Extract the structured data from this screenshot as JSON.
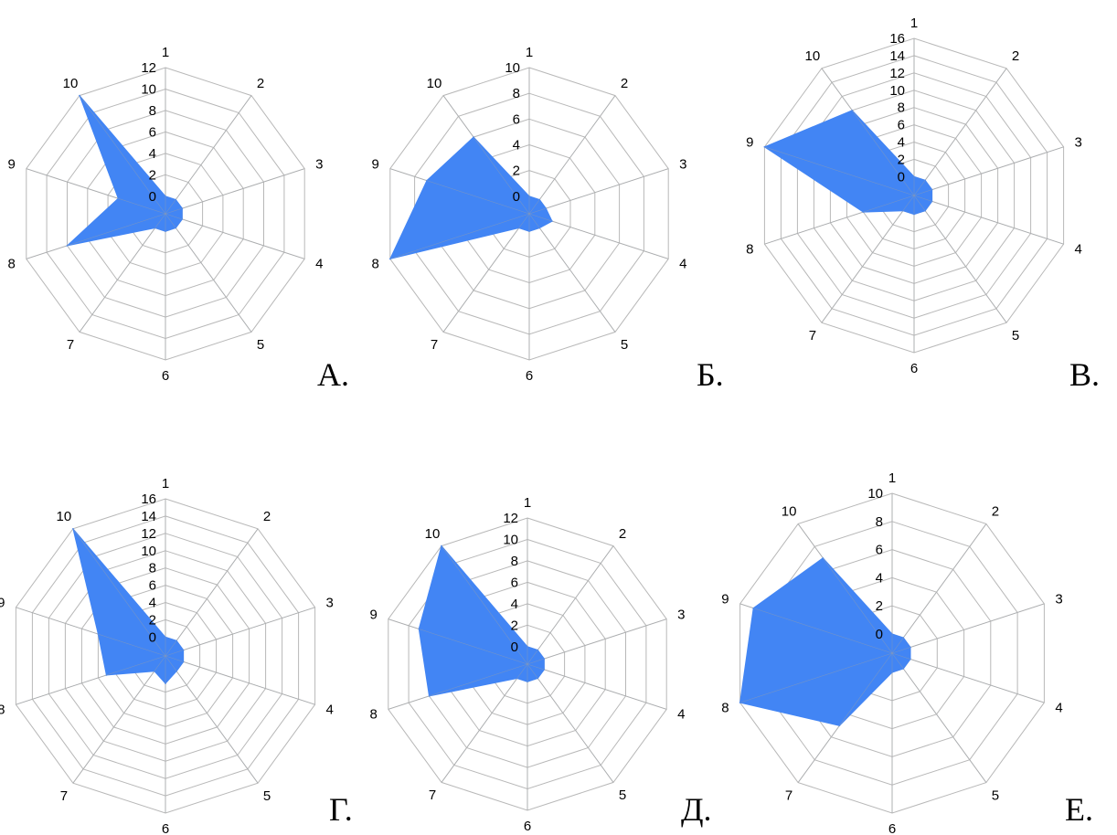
{
  "page": {
    "background": "#ffffff"
  },
  "style": {
    "grid_color": "#b8b8b8",
    "fill_color": "#4285f4",
    "text_color": "#000000"
  },
  "chart_data": [
    {
      "panel_label": "А.",
      "type": "radar",
      "categories": [
        "1",
        "2",
        "3",
        "4",
        "5",
        "6",
        "7",
        "8",
        "9",
        "10"
      ],
      "ticks": [
        "0",
        "2",
        "4",
        "6",
        "8",
        "10",
        "12"
      ],
      "rmax": 12,
      "grid": true,
      "series": [
        {
          "values": [
            0,
            0,
            0,
            0,
            0,
            0,
            0,
            8,
            3,
            12
          ]
        }
      ]
    },
    {
      "panel_label": "Б.",
      "type": "radar",
      "categories": [
        "1",
        "2",
        "3",
        "4",
        "5",
        "6",
        "7",
        "8",
        "9",
        "10"
      ],
      "ticks": [
        "0",
        "2",
        "4",
        "6",
        "8",
        "10"
      ],
      "rmax": 10,
      "grid": true,
      "series": [
        {
          "values": [
            0,
            0,
            0,
            0.5,
            0,
            0,
            0,
            10,
            7,
            6
          ]
        }
      ]
    },
    {
      "panel_label": "В.",
      "type": "radar",
      "categories": [
        "1",
        "2",
        "3",
        "4",
        "5",
        "6",
        "7",
        "8",
        "9",
        "10"
      ],
      "ticks": [
        "0",
        "2",
        "4",
        "6",
        "8",
        "10",
        "12",
        "14",
        "16"
      ],
      "rmax": 16,
      "grid": true,
      "series": [
        {
          "values": [
            0,
            0,
            0,
            0,
            0,
            0,
            0,
            4,
            16,
            10
          ]
        }
      ]
    },
    {
      "panel_label": "Г.",
      "type": "radar",
      "categories": [
        "1",
        "2",
        "3",
        "4",
        "5",
        "6",
        "7",
        "8",
        "9",
        "10"
      ],
      "ticks": [
        "0",
        "2",
        "4",
        "6",
        "8",
        "10",
        "12",
        "14",
        "16"
      ],
      "rmax": 16,
      "grid": true,
      "series": [
        {
          "values": [
            0,
            0,
            0,
            0,
            0,
            1,
            0,
            5,
            6,
            16
          ]
        }
      ]
    },
    {
      "panel_label": "Д.",
      "type": "radar",
      "categories": [
        "1",
        "2",
        "3",
        "4",
        "5",
        "6",
        "7",
        "8",
        "9",
        "10"
      ],
      "ticks": [
        "0",
        "2",
        "4",
        "6",
        "8",
        "10",
        "12"
      ],
      "rmax": 12,
      "grid": true,
      "series": [
        {
          "values": [
            0,
            0,
            0,
            0,
            0,
            0,
            0,
            8,
            9,
            12
          ]
        }
      ]
    },
    {
      "panel_label": "Е.",
      "type": "radar",
      "categories": [
        "1",
        "2",
        "3",
        "4",
        "5",
        "6",
        "7",
        "8",
        "9",
        "10"
      ],
      "ticks": [
        "0",
        "2",
        "4",
        "6",
        "8",
        "10"
      ],
      "rmax": 10,
      "grid": true,
      "series": [
        {
          "values": [
            0,
            0,
            0,
            0,
            0,
            0,
            5,
            10,
            9,
            7
          ]
        }
      ]
    }
  ]
}
